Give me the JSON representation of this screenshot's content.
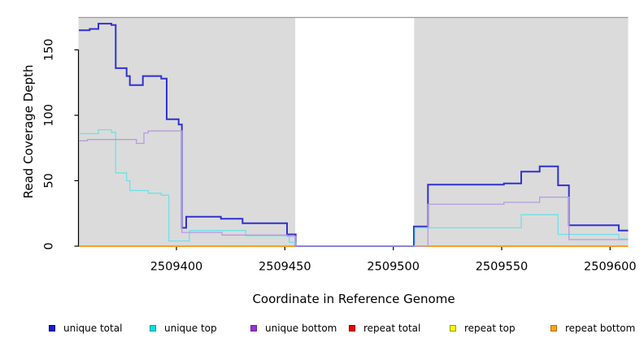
{
  "chart_data": {
    "type": "line",
    "step": true,
    "title": "",
    "xlabel": "Coordinate in Reference Genome",
    "ylabel": "Read Coverage Depth",
    "xlim": [
      2509354.8,
      2509608.3
    ],
    "ylim": [
      0,
      174.5
    ],
    "x_ticks": [
      2509400,
      2509450,
      2509500,
      2509550,
      2509600
    ],
    "y_ticks": [
      0,
      50,
      100,
      150
    ],
    "grid": false,
    "legend_position": "bottom",
    "panel_background": "#FFFFFF",
    "shaded_regions": [
      {
        "label": "coverage-window-left",
        "x_start": 2509354.8,
        "x_end": 2509454.8,
        "fill": "#DBDBDB"
      },
      {
        "label": "coverage-window-right",
        "x_start": 2509509.6,
        "x_end": 2509608.3,
        "fill": "#DBDBDB"
      }
    ],
    "frame_top_color": "#999999",
    "axis_color": "#000000",
    "series": [
      {
        "name": "unique total",
        "line_color": "#3131D1",
        "swatch_color": "#1A1ACC",
        "swatch_border": "#00008B",
        "line_width": 2,
        "steps": [
          [
            2509355,
            165
          ],
          [
            2509360,
            166
          ],
          [
            2509364,
            170
          ],
          [
            2509370,
            169
          ],
          [
            2509372,
            136
          ],
          [
            2509377,
            130
          ],
          [
            2509378.5,
            123
          ],
          [
            2509384.5,
            130
          ],
          [
            2509393,
            128
          ],
          [
            2509395.5,
            97
          ],
          [
            2509401,
            93
          ],
          [
            2509402.5,
            14
          ],
          [
            2509404.5,
            22.5
          ],
          [
            2509420.5,
            21
          ],
          [
            2509430.5,
            17.5
          ],
          [
            2509451,
            9
          ],
          [
            2509455,
            0
          ],
          [
            2509509.5,
            15
          ],
          [
            2509516,
            47
          ],
          [
            2509551,
            48
          ],
          [
            2509559,
            57
          ],
          [
            2509567.5,
            61
          ],
          [
            2509576,
            46.5
          ],
          [
            2509581,
            16
          ],
          [
            2509604,
            12
          ]
        ],
        "x_end": 2509608.3
      },
      {
        "name": "unique top",
        "line_color": "#6FE0E8",
        "swatch_color": "#00E0E8",
        "swatch_border": "#0E9AA5",
        "line_width": 1.3,
        "steps": [
          [
            2509355,
            86
          ],
          [
            2509364,
            89
          ],
          [
            2509370,
            87
          ],
          [
            2509372,
            56
          ],
          [
            2509377,
            50
          ],
          [
            2509378.5,
            42.5
          ],
          [
            2509387,
            40.5
          ],
          [
            2509393,
            39
          ],
          [
            2509396.5,
            4
          ],
          [
            2509406,
            12
          ],
          [
            2509432,
            8
          ],
          [
            2509452,
            3
          ],
          [
            2509455,
            0
          ],
          [
            2509510,
            14
          ],
          [
            2509559,
            24
          ],
          [
            2509576,
            9
          ],
          [
            2509604,
            5.5
          ]
        ],
        "x_end": 2509608.3
      },
      {
        "name": "unique bottom",
        "line_color": "#B79BDE",
        "swatch_color": "#9933CC",
        "swatch_border": "#6B21A8",
        "line_width": 1.3,
        "steps": [
          [
            2509355,
            80.5
          ],
          [
            2509359,
            81.5
          ],
          [
            2509381.5,
            78.5
          ],
          [
            2509385,
            86.5
          ],
          [
            2509387,
            88
          ],
          [
            2509402.5,
            10.5
          ],
          [
            2509421,
            8.5
          ],
          [
            2509451,
            7.5
          ],
          [
            2509455,
            0
          ],
          [
            2509516,
            32
          ],
          [
            2509551,
            33.5
          ],
          [
            2509567.5,
            37.5
          ],
          [
            2509581,
            5
          ]
        ],
        "x_end": 2509608.3
      },
      {
        "name": "repeat total",
        "line_color": "#DD0000",
        "swatch_color": "#EE0000",
        "swatch_border": "#8B0000",
        "line_width": 1.2,
        "steps": [
          [
            2509355,
            0
          ]
        ],
        "x_end": 2509608.3
      },
      {
        "name": "repeat top",
        "line_color": "#F0F000",
        "swatch_color": "#FAFA00",
        "swatch_border": "#9A9A00",
        "line_width": 1.2,
        "steps": [
          [
            2509355,
            0
          ]
        ],
        "x_end": 2509608.3
      },
      {
        "name": "repeat bottom",
        "line_color": "#FF9D26",
        "swatch_color": "#FFA513",
        "swatch_border": "#C06A00",
        "line_width": 2,
        "steps": [
          [
            2509355,
            0
          ]
        ],
        "x_end": 2509608.3
      }
    ],
    "draw_order": [
      "repeat total",
      "repeat top",
      "repeat bottom",
      "unique total",
      "unique top",
      "unique bottom"
    ]
  }
}
